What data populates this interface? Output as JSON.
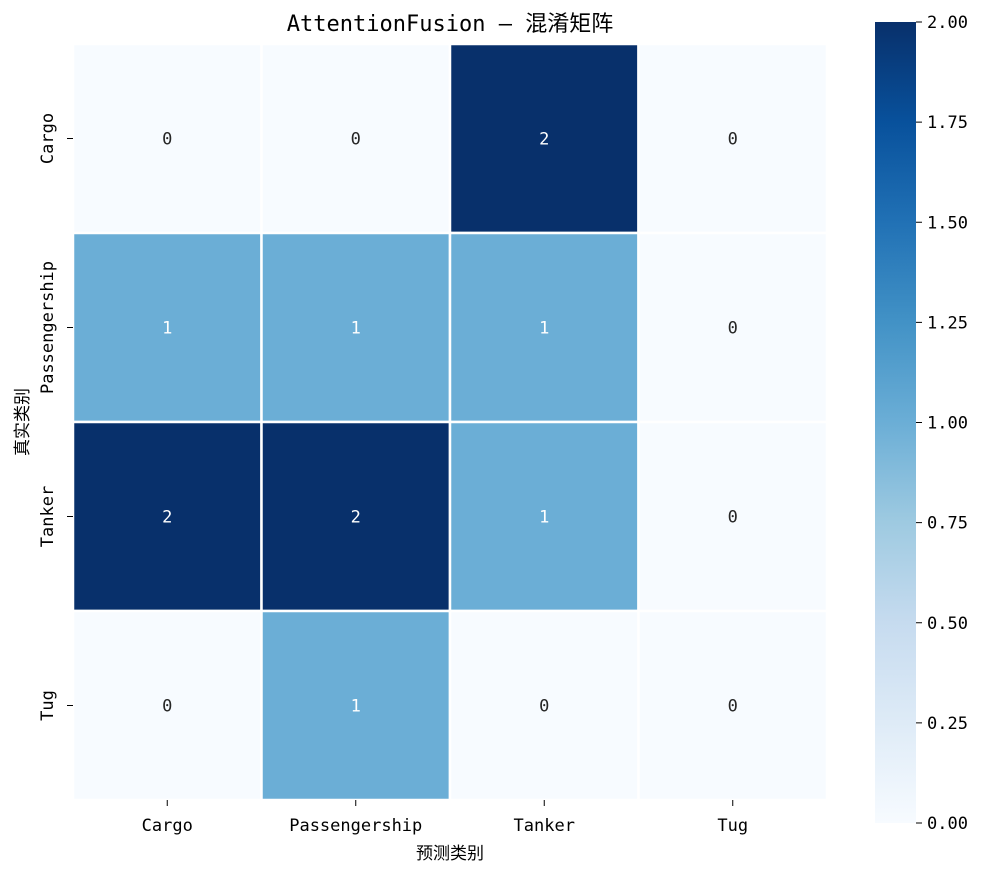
{
  "chart_data": {
    "type": "heatmap",
    "title": "AttentionFusion — 混淆矩阵",
    "xlabel": "预测类别",
    "ylabel": "真实类别",
    "x_categories": [
      "Cargo",
      "Passengership",
      "Tanker",
      "Tug"
    ],
    "y_categories": [
      "Cargo",
      "Passengership",
      "Tanker",
      "Tug"
    ],
    "values": [
      [
        0,
        0,
        2,
        0
      ],
      [
        1,
        1,
        1,
        0
      ],
      [
        2,
        2,
        1,
        0
      ],
      [
        0,
        1,
        0,
        0
      ]
    ],
    "colormap": "Blues",
    "vmin": 0,
    "vmax": 2,
    "colorbar_ticks": [
      "0.00",
      "0.25",
      "0.50",
      "0.75",
      "1.00",
      "1.25",
      "1.50",
      "1.75",
      "2.00"
    ],
    "colors": {
      "low": "#f7fbff",
      "mid": "#6baed6",
      "high": "#08306b",
      "cell_border": "#ffffff",
      "annotation_dark": "#262626",
      "annotation_light": "#ffffff"
    }
  }
}
